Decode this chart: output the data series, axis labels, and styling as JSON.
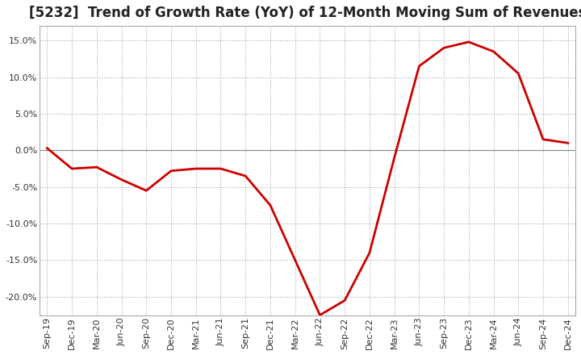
{
  "title": "[5232]  Trend of Growth Rate (YoY) of 12-Month Moving Sum of Revenues",
  "title_fontsize": 12,
  "x_labels": [
    "Sep-19",
    "Dec-19",
    "Mar-20",
    "Jun-20",
    "Sep-20",
    "Dec-20",
    "Mar-21",
    "Jun-21",
    "Sep-21",
    "Dec-21",
    "Mar-22",
    "Jun-22",
    "Sep-22",
    "Dec-22",
    "Mar-23",
    "Jun-23",
    "Sep-23",
    "Dec-23",
    "Mar-24",
    "Jun-24",
    "Sep-24",
    "Dec-24"
  ],
  "y_values": [
    0.3,
    -2.5,
    -2.3,
    -4.0,
    -5.5,
    -2.8,
    -2.5,
    -2.5,
    -3.5,
    -7.5,
    -15.0,
    -22.5,
    -20.5,
    -14.0,
    -1.0,
    11.5,
    14.0,
    14.8,
    13.5,
    10.5,
    1.5,
    1.0
  ],
  "line_color": "#cc0000",
  "background_color": "#ffffff",
  "grid_color": "#aaaaaa",
  "ylim": [
    -22.5,
    17
  ],
  "yticks": [
    -20,
    -15,
    -10,
    -5,
    0,
    5,
    10,
    15
  ]
}
